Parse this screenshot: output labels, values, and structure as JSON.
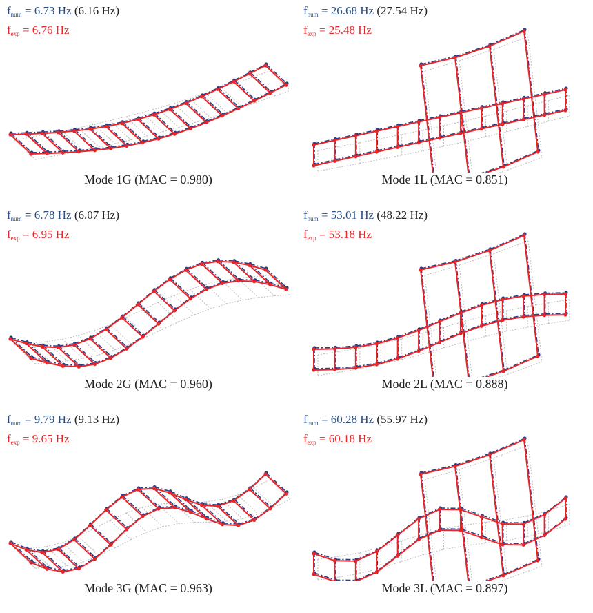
{
  "panels": [
    {
      "f_num": {
        "symbol": "f",
        "subscript": "num",
        "value": "= 6.73 Hz",
        "reference": "(6.16 Hz)"
      },
      "f_exp": {
        "symbol": "f",
        "subscript": "exp",
        "value": "= 6.76 Hz"
      },
      "caption": "Mode 1G (MAC = 0.980)"
    },
    {
      "f_num": {
        "symbol": "f",
        "subscript": "num",
        "value": "= 26.68 Hz",
        "reference": "(27.54 Hz)"
      },
      "f_exp": {
        "symbol": "f",
        "subscript": "exp",
        "value": "= 25.48 Hz"
      },
      "caption": "Mode 1L (MAC = 0.851)"
    },
    {
      "f_num": {
        "symbol": "f",
        "subscript": "num",
        "value": "= 6.78 Hz",
        "reference": "(6.07 Hz)"
      },
      "f_exp": {
        "symbol": "f",
        "subscript": "exp",
        "value": "= 6.95 Hz"
      },
      "caption": "Mode 2G (MAC = 0.960)"
    },
    {
      "f_num": {
        "symbol": "f",
        "subscript": "num",
        "value": "= 53.01 Hz",
        "reference": "(48.22 Hz)"
      },
      "f_exp": {
        "symbol": "f",
        "subscript": "exp",
        "value": "= 53.18 Hz"
      },
      "caption": "Mode 2L (MAC = 0.888)"
    },
    {
      "f_num": {
        "symbol": "f",
        "subscript": "num",
        "value": "= 9.79 Hz",
        "reference": "(9.13 Hz)"
      },
      "f_exp": {
        "symbol": "f",
        "subscript": "exp",
        "value": "= 9.65 Hz"
      },
      "caption": "Mode 3G (MAC = 0.963)"
    },
    {
      "f_num": {
        "symbol": "f",
        "subscript": "num",
        "value": "= 60.28 Hz",
        "reference": "(55.97 Hz)"
      },
      "f_exp": {
        "symbol": "f",
        "subscript": "exp",
        "value": "= 60.18 Hz"
      },
      "caption": "Mode 3L (MAC = 0.897)"
    }
  ]
}
